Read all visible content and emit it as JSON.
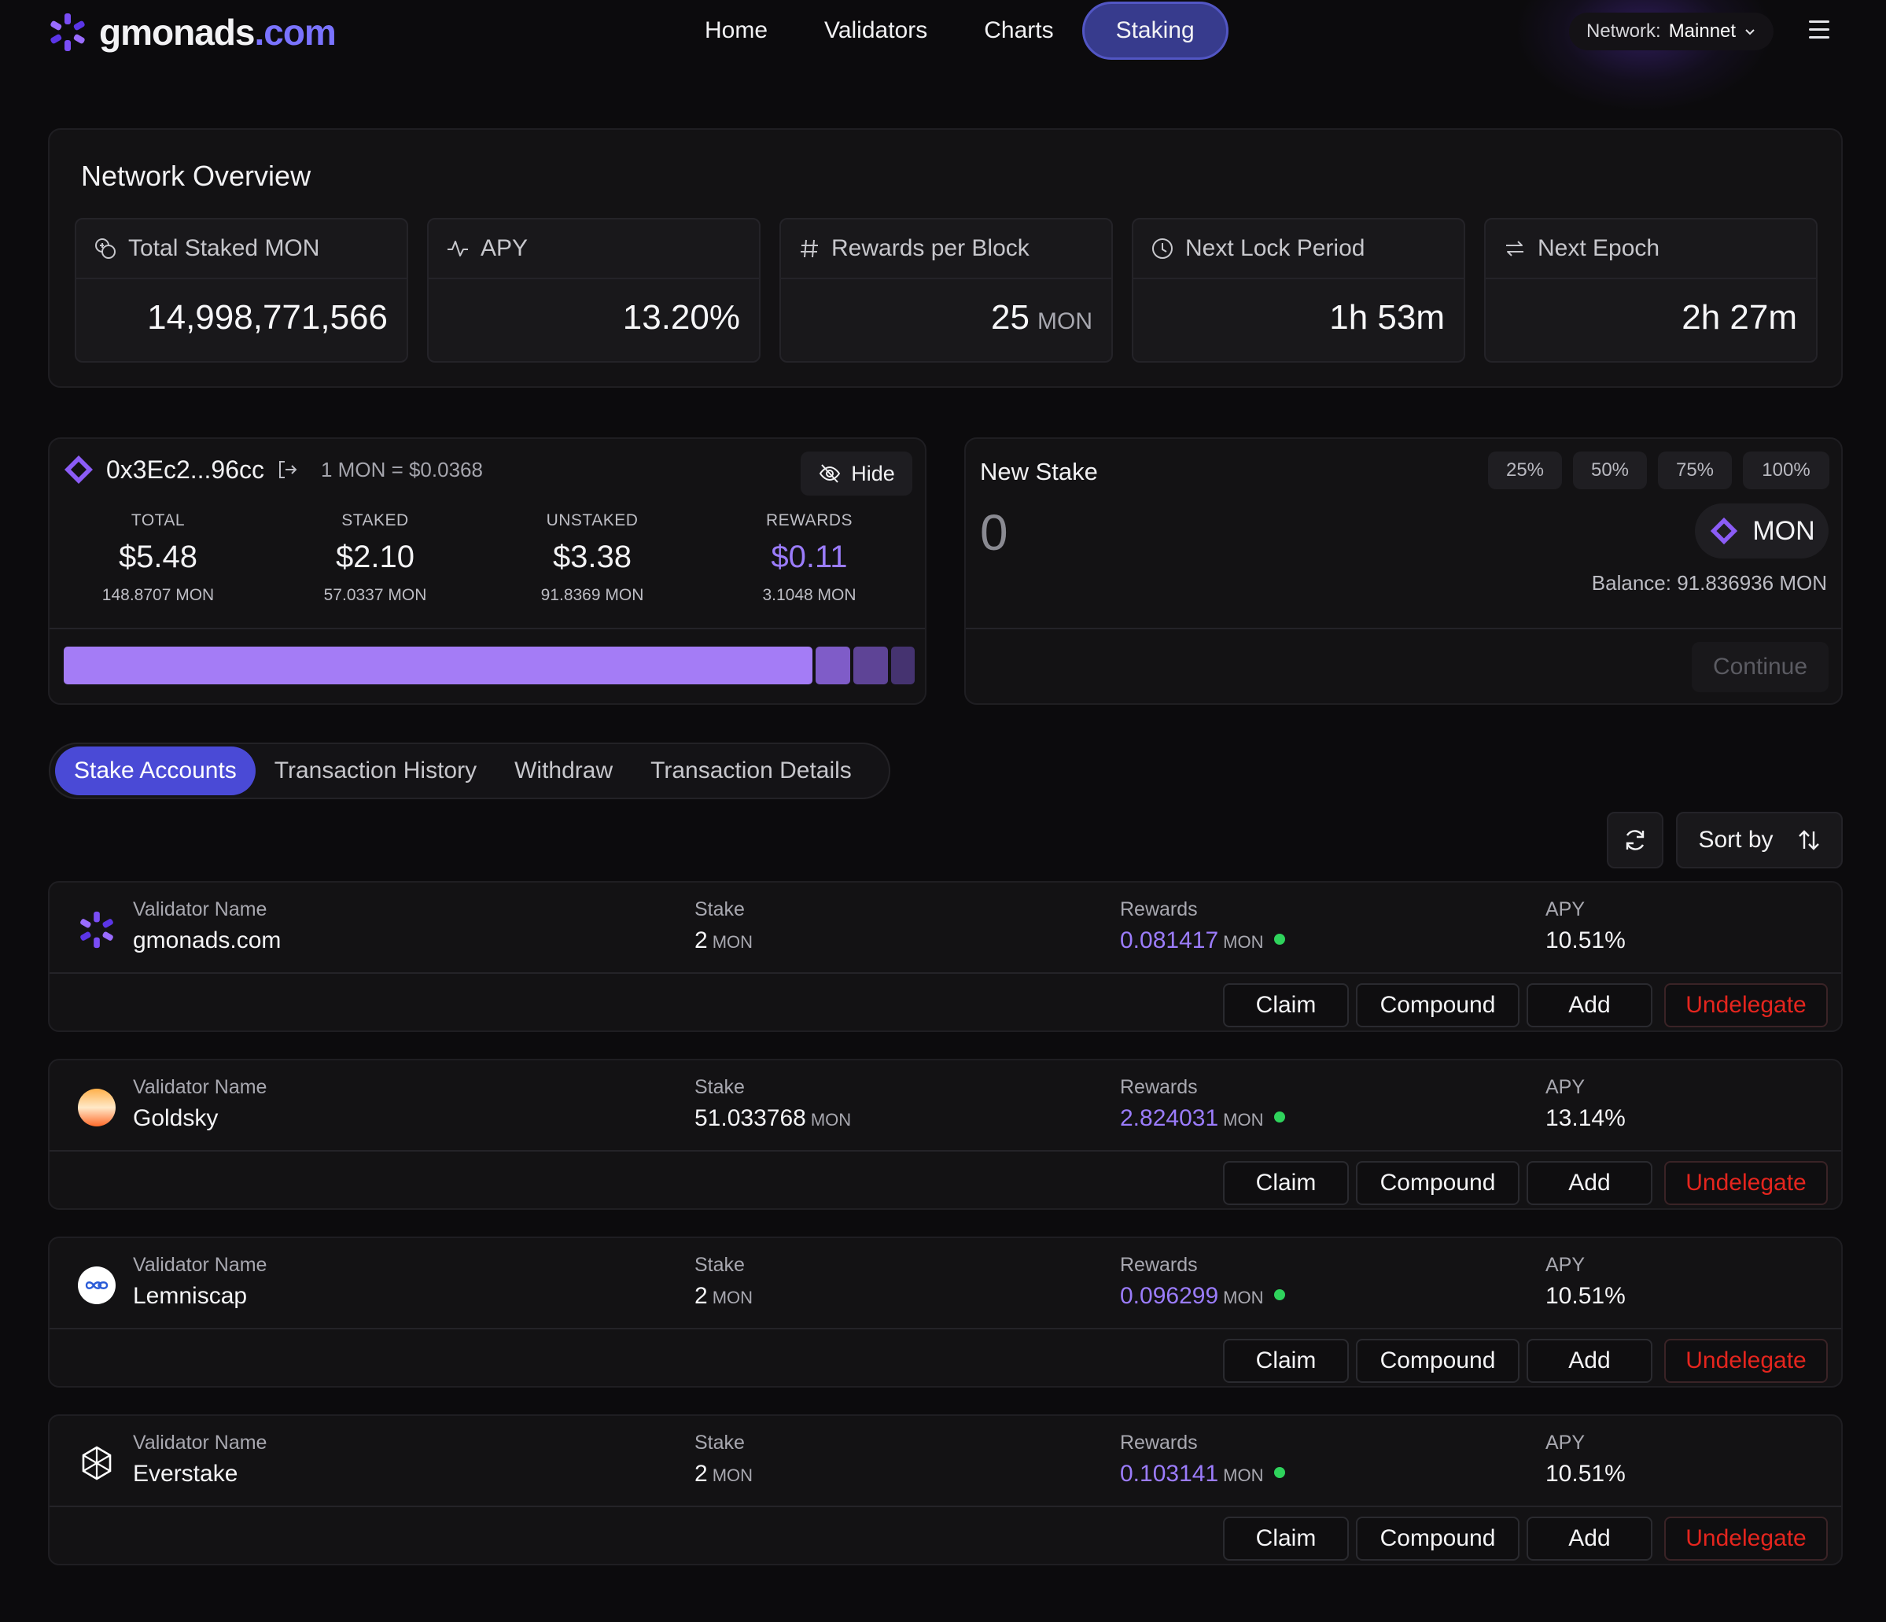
{
  "brand": {
    "name": "gmonads",
    "domain": ".com",
    "accent": "#7a73ff"
  },
  "nav": [
    {
      "label": "Home",
      "active": false
    },
    {
      "label": "Validators",
      "active": false
    },
    {
      "label": "Charts",
      "active": false
    },
    {
      "label": "Staking",
      "active": true
    }
  ],
  "network": {
    "label": "Network:",
    "value": "Mainnet"
  },
  "overview": {
    "title": "Network Overview",
    "stats": [
      {
        "icon": "coins-icon",
        "label": "Total Staked MON",
        "value": "14,998,771,566",
        "unit": ""
      },
      {
        "icon": "activity-icon",
        "label": "APY",
        "value": "13.20%",
        "unit": ""
      },
      {
        "icon": "hash-icon",
        "label": "Rewards per Block",
        "value": "25",
        "unit": "MON"
      },
      {
        "icon": "clock-icon",
        "label": "Next Lock Period",
        "value": "1h 53m",
        "unit": ""
      },
      {
        "icon": "repeat-icon",
        "label": "Next Epoch",
        "value": "2h 27m",
        "unit": ""
      }
    ]
  },
  "wallet": {
    "address": "0x3Ec2...96cc",
    "rate": "1 MON = $0.0368",
    "hide_label": "Hide",
    "columns": [
      {
        "label": "TOTAL",
        "usd": "$5.48",
        "mon": "148.8707 MON"
      },
      {
        "label": "STAKED",
        "usd": "$2.10",
        "mon": "57.0337 MON"
      },
      {
        "label": "UNSTAKED",
        "usd": "$3.38",
        "mon": "91.8369 MON"
      },
      {
        "label": "REWARDS",
        "usd": "$0.11",
        "mon": "3.1048 MON"
      }
    ],
    "bar_colors": [
      "#a47cf6",
      "#7f5cc8",
      "#5e4496",
      "#453370"
    ]
  },
  "new_stake": {
    "title": "New Stake",
    "percents": [
      "25%",
      "50%",
      "75%",
      "100%"
    ],
    "amount": "0",
    "token": "MON",
    "balance": "Balance: 91.836936 MON",
    "continue_label": "Continue"
  },
  "tabs": [
    {
      "label": "Stake Accounts",
      "active": true
    },
    {
      "label": "Transaction History",
      "active": false
    },
    {
      "label": "Withdraw",
      "active": false
    },
    {
      "label": "Transaction Details",
      "active": false
    }
  ],
  "sort_label": "Sort by",
  "columns": {
    "validator": "Validator Name",
    "stake": "Stake",
    "rewards": "Rewards",
    "apy": "APY"
  },
  "actions": {
    "claim": "Claim",
    "compound": "Compound",
    "add": "Add",
    "undelegate": "Undelegate"
  },
  "unit": "MON",
  "validators": [
    {
      "name": "gmonads.com",
      "logo": "gmonads-logo-icon",
      "stake": "2",
      "rewards": "0.081417",
      "apy": "10.51%"
    },
    {
      "name": "Goldsky",
      "logo": "goldsky-logo-icon",
      "stake": "51.033768",
      "rewards": "2.824031",
      "apy": "13.14%"
    },
    {
      "name": "Lemniscap",
      "logo": "lemniscap-logo-icon",
      "stake": "2",
      "rewards": "0.096299",
      "apy": "10.51%"
    },
    {
      "name": "Everstake",
      "logo": "everstake-logo-icon",
      "stake": "2",
      "rewards": "0.103141",
      "apy": "10.51%"
    }
  ]
}
